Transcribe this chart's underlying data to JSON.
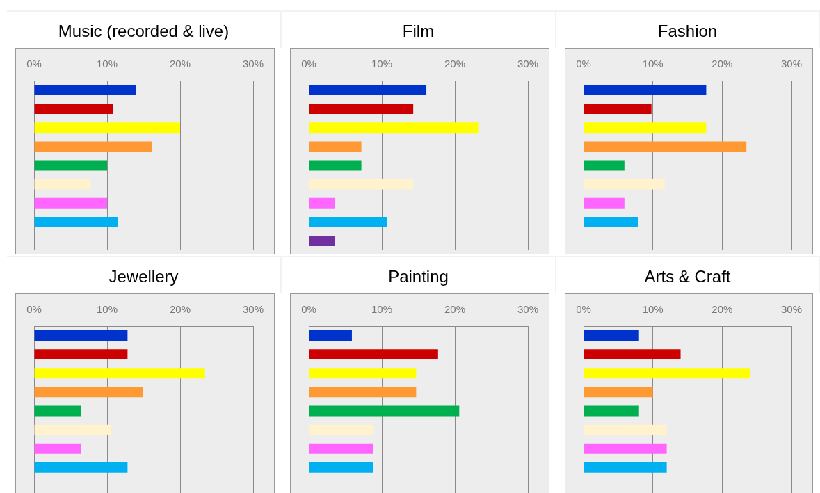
{
  "chart_data": [
    {
      "type": "bar",
      "orientation": "horizontal",
      "title": "Music (recorded & live)",
      "categories": [
        null,
        null,
        null,
        null,
        null,
        null,
        null,
        null,
        null
      ],
      "values": [
        14,
        10.8,
        20,
        16.1,
        10,
        7.7,
        10,
        11.5,
        null
      ],
      "colors": [
        "#0033cc",
        "#cc0000",
        "#ffff00",
        "#ff9933",
        "#00b050",
        "#fff2cc",
        "#ff66ff",
        "#00b0f0",
        "#7030a0"
      ],
      "xlim": [
        0,
        30
      ],
      "xticks": [
        {
          "value": 0,
          "label": "0%"
        },
        {
          "value": 10,
          "label": "10%"
        },
        {
          "value": 20,
          "label": "20%"
        },
        {
          "value": 30,
          "label": "30%"
        }
      ],
      "grid": "x"
    },
    {
      "type": "bar",
      "orientation": "horizontal",
      "title": "Film",
      "categories": [
        null,
        null,
        null,
        null,
        null,
        null,
        null,
        null,
        null
      ],
      "values": [
        16.1,
        14.3,
        23.2,
        7.2,
        7.2,
        14.3,
        3.6,
        10.7,
        3.6
      ],
      "colors": [
        "#0033cc",
        "#cc0000",
        "#ffff00",
        "#ff9933",
        "#00b050",
        "#fff2cc",
        "#ff66ff",
        "#00b0f0",
        "#7030a0"
      ],
      "xlim": [
        0,
        30
      ],
      "xticks": [
        {
          "value": 0,
          "label": "0%"
        },
        {
          "value": 10,
          "label": "10%"
        },
        {
          "value": 20,
          "label": "20%"
        },
        {
          "value": 30,
          "label": "30%"
        }
      ],
      "grid": "x"
    },
    {
      "type": "bar",
      "orientation": "horizontal",
      "title": "Fashion",
      "categories": [
        null,
        null,
        null,
        null,
        null,
        null,
        null,
        null,
        null
      ],
      "values": [
        17.7,
        9.8,
        17.7,
        23.5,
        5.9,
        11.7,
        5.9,
        7.9,
        null
      ],
      "colors": [
        "#0033cc",
        "#cc0000",
        "#ffff00",
        "#ff9933",
        "#00b050",
        "#fff2cc",
        "#ff66ff",
        "#00b0f0",
        "#7030a0"
      ],
      "xlim": [
        0,
        30
      ],
      "xticks": [
        {
          "value": 0,
          "label": "0%"
        },
        {
          "value": 10,
          "label": "10%"
        },
        {
          "value": 20,
          "label": "20%"
        },
        {
          "value": 30,
          "label": "30%"
        }
      ],
      "grid": "x"
    },
    {
      "type": "bar",
      "orientation": "horizontal",
      "title": "Jewellery",
      "categories": [
        null,
        null,
        null,
        null,
        null,
        null,
        null,
        null,
        null
      ],
      "values": [
        12.8,
        12.8,
        23.4,
        14.9,
        6.4,
        10.6,
        6.4,
        12.8,
        null
      ],
      "colors": [
        "#0033cc",
        "#cc0000",
        "#ffff00",
        "#ff9933",
        "#00b050",
        "#fff2cc",
        "#ff66ff",
        "#00b0f0",
        "#7030a0"
      ],
      "xlim": [
        0,
        30
      ],
      "xticks": [
        {
          "value": 0,
          "label": "0%"
        },
        {
          "value": 10,
          "label": "10%"
        },
        {
          "value": 20,
          "label": "20%"
        },
        {
          "value": 30,
          "label": "30%"
        }
      ],
      "grid": "x"
    },
    {
      "type": "bar",
      "orientation": "horizontal",
      "title": "Painting",
      "categories": [
        null,
        null,
        null,
        null,
        null,
        null,
        null,
        null,
        null
      ],
      "values": [
        5.9,
        17.7,
        14.7,
        14.7,
        20.6,
        8.8,
        8.8,
        8.8,
        null
      ],
      "colors": [
        "#0033cc",
        "#cc0000",
        "#ffff00",
        "#ff9933",
        "#00b050",
        "#fff2cc",
        "#ff66ff",
        "#00b0f0",
        "#7030a0"
      ],
      "xlim": [
        0,
        30
      ],
      "xticks": [
        {
          "value": 0,
          "label": "0%"
        },
        {
          "value": 10,
          "label": "10%"
        },
        {
          "value": 20,
          "label": "20%"
        },
        {
          "value": 30,
          "label": "30%"
        }
      ],
      "grid": "x"
    },
    {
      "type": "bar",
      "orientation": "horizontal",
      "title": "Arts & Craft",
      "categories": [
        null,
        null,
        null,
        null,
        null,
        null,
        null,
        null,
        null
      ],
      "values": [
        8,
        14,
        24,
        10,
        8,
        12,
        12,
        12,
        null
      ],
      "colors": [
        "#0033cc",
        "#cc0000",
        "#ffff00",
        "#ff9933",
        "#00b050",
        "#fff2cc",
        "#ff66ff",
        "#00b0f0",
        "#7030a0"
      ],
      "xlim": [
        0,
        30
      ],
      "xticks": [
        {
          "value": 0,
          "label": "0%"
        },
        {
          "value": 10,
          "label": "10%"
        },
        {
          "value": 20,
          "label": "20%"
        },
        {
          "value": 30,
          "label": "30%"
        }
      ],
      "grid": "x"
    }
  ]
}
